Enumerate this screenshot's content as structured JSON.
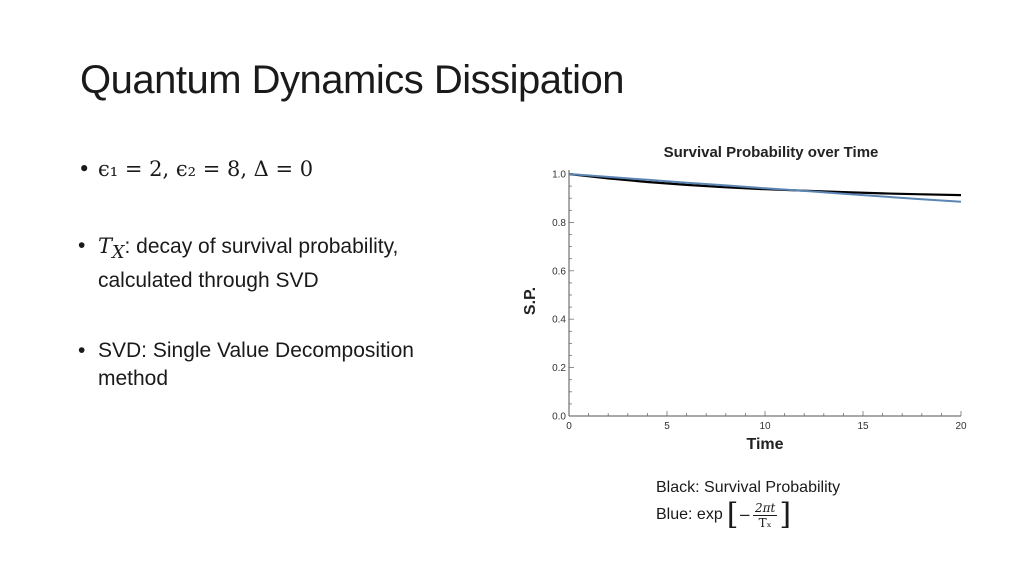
{
  "slide": {
    "title": "Quantum Dynamics Dissipation"
  },
  "bullets": {
    "b1": {
      "dot": "•",
      "text": "ϵ₁ = 2,  ϵ₂ = 8,  Δ = 0"
    },
    "b2": {
      "dot": "•",
      "symbol": "T",
      "subscript": "X",
      "line1": ": decay of survival probability,",
      "line2": "calculated through SVD"
    },
    "b3": {
      "dot": "•",
      "line1": "SVD: Single Value Decomposition",
      "line2": "method"
    }
  },
  "chart_data": {
    "type": "line",
    "title": "Survival Probability over Time",
    "xlabel": "Time",
    "ylabel": "S.P.",
    "xlim": [
      0,
      20
    ],
    "ylim": [
      0,
      1.0
    ],
    "xticks": [
      0,
      5,
      10,
      15,
      20
    ],
    "yticks": [
      0.0,
      0.2,
      0.4,
      0.6,
      0.8,
      1.0
    ],
    "series": [
      {
        "color": "#000000",
        "x": [
          0,
          2,
          4,
          6,
          8,
          10,
          12,
          14,
          16,
          18,
          20
        ],
        "y": [
          1.0,
          0.982,
          0.967,
          0.955,
          0.945,
          0.937,
          0.931,
          0.925,
          0.92,
          0.916,
          0.913
        ]
      },
      {
        "color": "#5b86b3",
        "x": [
          0,
          2,
          4,
          6,
          8,
          10,
          12,
          14,
          16,
          18,
          20
        ],
        "y": [
          1.0,
          0.988,
          0.976,
          0.964,
          0.953,
          0.941,
          0.93,
          0.918,
          0.907,
          0.896,
          0.885
        ]
      }
    ]
  },
  "legend_note": {
    "line1": "Black: Survival Probability",
    "blue_prefix": "Blue: exp",
    "formula": {
      "open": "[",
      "minus": "−",
      "numerator": "2πt",
      "denominator": "Tₓ",
      "close": "]"
    }
  }
}
